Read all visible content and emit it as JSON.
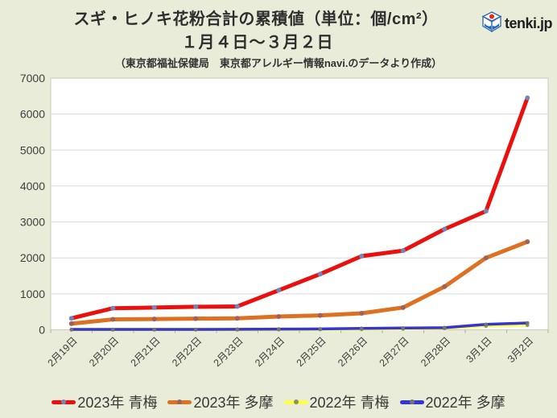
{
  "header": {
    "title": "スギ・ヒノキ花粉合計の累積値（単位：個/cm²）",
    "subtitle": "１月４日～３月２日",
    "source_note": "（東京都福祉保健局　東京都アレルギー情報navi.のデータより作成）",
    "logo_text": "tenki.jp"
  },
  "colors": {
    "background": "#e8ecd9",
    "plot_background": "#ffffff",
    "plot_border": "#c6cbb9",
    "gridline": "#dadada",
    "tick": "#a9ad9e",
    "axis_text": "#3f3f3f",
    "logo_blue": "#2a66b0",
    "logo_red": "#e8281e"
  },
  "chart_data": {
    "type": "line",
    "title": "スギ・ヒノキ花粉合計の累積値（単位：個/cm²）",
    "subtitle": "１月４日～３月２日",
    "xlabel": "",
    "ylabel": "",
    "ylim": [
      0,
      7000
    ],
    "yticks": [
      0,
      1000,
      2000,
      3000,
      4000,
      5000,
      6000,
      7000
    ],
    "grid": true,
    "legend_position": "bottom",
    "categories": [
      "2月19日",
      "2月20日",
      "2月21日",
      "2月22日",
      "2月23日",
      "2月24日",
      "2月25日",
      "2月26日",
      "2月27日",
      "2月28日",
      "3月1日",
      "3月2日"
    ],
    "series": [
      {
        "name": "2023年 青梅",
        "color": "#ea100e",
        "marker_color": "#7585b5",
        "line_width": 5,
        "values": [
          320,
          600,
          620,
          640,
          650,
          1100,
          1550,
          2050,
          2200,
          2800,
          3300,
          6450
        ]
      },
      {
        "name": "2023年 多摩",
        "color": "#dd7021",
        "marker_color": "#9e6258",
        "line_width": 5,
        "values": [
          170,
          290,
          300,
          310,
          320,
          370,
          400,
          460,
          620,
          1200,
          2000,
          2450
        ]
      },
      {
        "name": "2022年 青梅",
        "color": "#ffff4d",
        "marker_color": "#8f9160",
        "line_width": 3.5,
        "values": [
          0,
          0,
          0,
          0,
          0,
          5,
          10,
          15,
          25,
          40,
          105,
          130
        ]
      },
      {
        "name": "2022年 多摩",
        "color": "#3535cf",
        "marker_color": "#6f7480",
        "line_width": 3.5,
        "values": [
          10,
          10,
          10,
          10,
          15,
          20,
          25,
          40,
          50,
          60,
          150,
          190
        ]
      }
    ]
  }
}
